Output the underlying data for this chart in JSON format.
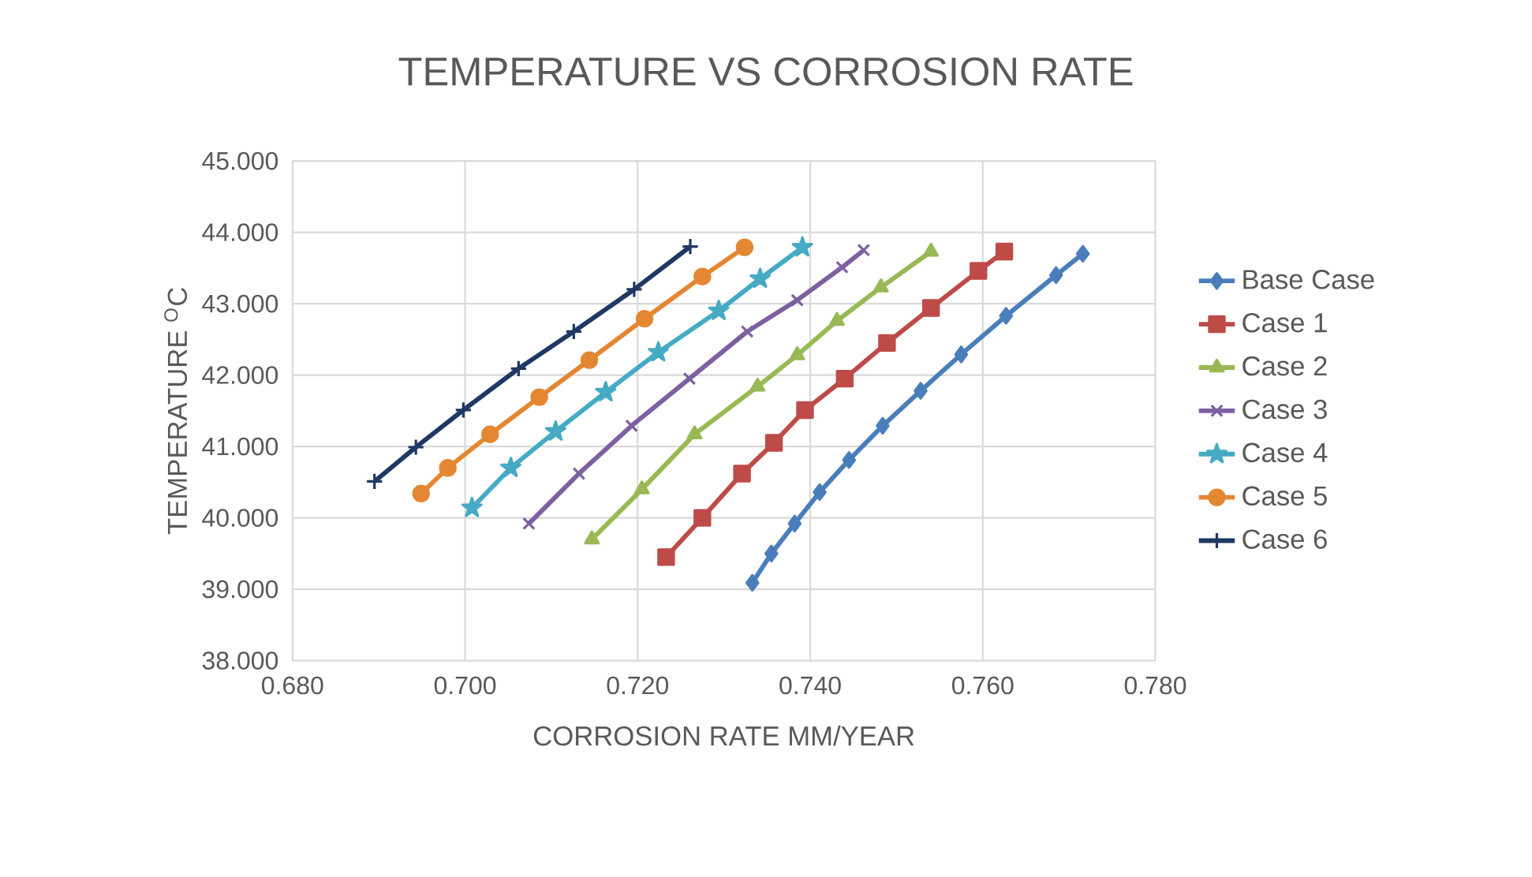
{
  "chart_data": {
    "type": "line",
    "title": "TEMPERATURE VS CORROSION RATE",
    "xlabel": "CORROSION RATE MM/YEAR",
    "ylabel": "TEMPERATURE $^{O}$C",
    "xlim": [
      0.68,
      0.78
    ],
    "ylim": [
      38,
      45
    ],
    "xticks": [
      {
        "value": 0.68,
        "label": "0.680"
      },
      {
        "value": 0.7,
        "label": "0.700"
      },
      {
        "value": 0.72,
        "label": "0.720"
      },
      {
        "value": 0.74,
        "label": "0.740"
      },
      {
        "value": 0.76,
        "label": "0.760"
      },
      {
        "value": 0.78,
        "label": "0.780"
      }
    ],
    "yticks": [
      {
        "value": 38,
        "label": "38.000"
      },
      {
        "value": 39,
        "label": "39.000"
      },
      {
        "value": 40,
        "label": "40.000"
      },
      {
        "value": 41,
        "label": "41.000"
      },
      {
        "value": 42,
        "label": "42.000"
      },
      {
        "value": 43,
        "label": "43.000"
      },
      {
        "value": 44,
        "label": "44.000"
      },
      {
        "value": 45,
        "label": "45.000"
      }
    ],
    "grid": true,
    "legend": "right",
    "line_style": "solid",
    "series": [
      {
        "name": "Base Case",
        "color": "#4a7ebb",
        "marker": "diamond",
        "x": [
          0.7333,
          0.7355,
          0.7382,
          0.7411,
          0.7445,
          0.7484,
          0.7528,
          0.7575,
          0.7627,
          0.7685,
          0.7716
        ],
        "values": [
          39.09,
          39.5,
          39.92,
          40.36,
          40.81,
          41.29,
          41.78,
          42.29,
          42.83,
          43.4,
          43.7
        ]
      },
      {
        "name": "Case 1",
        "color": "#be4b48",
        "marker": "square",
        "x": [
          0.7233,
          0.7275,
          0.7321,
          0.7358,
          0.7394,
          0.744,
          0.7489,
          0.754,
          0.7595,
          0.7625
        ],
        "values": [
          39.45,
          40.0,
          40.62,
          41.05,
          41.51,
          41.95,
          42.45,
          42.94,
          43.46,
          43.73
        ]
      },
      {
        "name": "Case 2",
        "color": "#98b954",
        "marker": "triangle",
        "x": [
          0.7147,
          0.7205,
          0.7266,
          0.7339,
          0.7385,
          0.7431,
          0.7482,
          0.754
        ],
        "values": [
          39.7,
          40.4,
          41.17,
          41.84,
          42.28,
          42.76,
          43.23,
          43.73
        ]
      },
      {
        "name": "Case 3",
        "color": "#7d60a0",
        "marker": "cross",
        "x": [
          0.7074,
          0.7132,
          0.7193,
          0.726,
          0.7327,
          0.7385,
          0.7437,
          0.7462
        ],
        "values": [
          39.92,
          40.62,
          41.29,
          41.95,
          42.61,
          43.05,
          43.51,
          43.75
        ]
      },
      {
        "name": "Case 4",
        "color": "#46aac5",
        "marker": "star",
        "x": [
          0.7008,
          0.7053,
          0.7105,
          0.7163,
          0.7224,
          0.7294,
          0.7342,
          0.7391
        ],
        "values": [
          40.14,
          40.7,
          41.21,
          41.76,
          42.32,
          42.9,
          43.35,
          43.79
        ]
      },
      {
        "name": "Case 5",
        "color": "#e48732",
        "marker": "circle",
        "x": [
          0.6949,
          0.698,
          0.7029,
          0.7086,
          0.7144,
          0.7208,
          0.7275,
          0.7324
        ],
        "values": [
          40.34,
          40.7,
          41.17,
          41.69,
          42.21,
          42.79,
          43.38,
          43.79
        ]
      },
      {
        "name": "Case 6",
        "color": "#1f3864",
        "marker": "plus",
        "x": [
          0.6895,
          0.6943,
          0.6998,
          0.7062,
          0.7126,
          0.7196,
          0.7261
        ],
        "values": [
          40.51,
          40.99,
          41.51,
          42.09,
          42.61,
          43.2,
          43.8
        ]
      }
    ]
  }
}
